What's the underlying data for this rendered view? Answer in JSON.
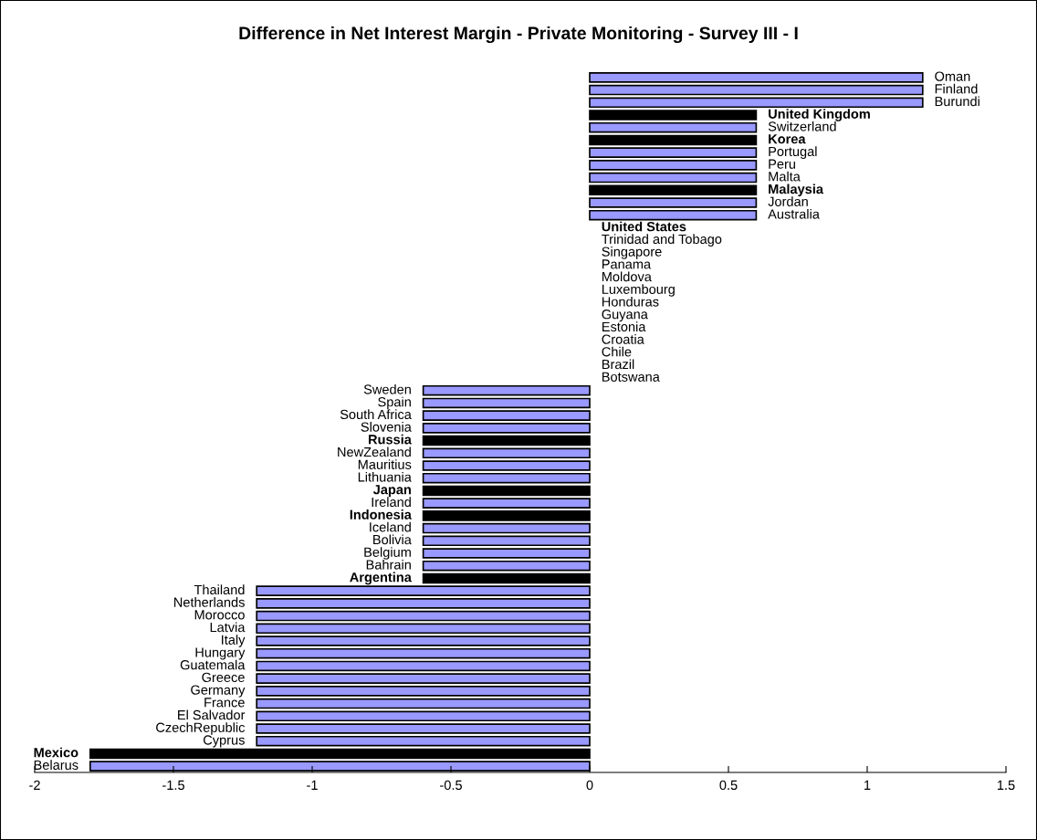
{
  "chart_data": {
    "type": "bar",
    "orientation": "horizontal",
    "title": "Difference in Net Interest Margin - Private Monitoring - Survey III - I",
    "categories": [
      "Oman",
      "Finland",
      "Burundi",
      "United Kingdom",
      "Switzerland",
      "Korea",
      "Portugal",
      "Peru",
      "Malta",
      "Malaysia",
      "Jordan",
      "Australia",
      "United States",
      "Trinidad and Tobago",
      "Singapore",
      "Panama",
      "Moldova",
      "Luxembourg",
      "Honduras",
      "Guyana",
      "Estonia",
      "Croatia",
      "Chile",
      "Brazil",
      "Botswana",
      "Sweden",
      "Spain",
      "South Africa",
      "Slovenia",
      "Russia",
      "NewZealand",
      "Mauritius",
      "Lithuania",
      "Japan",
      "Ireland",
      "Indonesia",
      "Iceland",
      "Bolivia",
      "Belgium",
      "Bahrain",
      "Argentina",
      "Thailand",
      "Netherlands",
      "Morocco",
      "Latvia",
      "Italy",
      "Hungary",
      "Guatemala",
      "Greece",
      "Germany",
      "France",
      "El Salvador",
      "CzechRepublic",
      "Cyprus",
      "Mexico",
      "Belarus"
    ],
    "values": [
      1.2,
      1.2,
      1.2,
      0.6,
      0.6,
      0.6,
      0.6,
      0.6,
      0.6,
      0.6,
      0.6,
      0.6,
      0,
      0,
      0,
      0,
      0,
      0,
      0,
      0,
      0,
      0,
      0,
      0,
      0,
      -0.6,
      -0.6,
      -0.6,
      -0.6,
      -0.6,
      -0.6,
      -0.6,
      -0.6,
      -0.6,
      -0.6,
      -0.6,
      -0.6,
      -0.6,
      -0.6,
      -0.6,
      -0.6,
      -1.2,
      -1.2,
      -1.2,
      -1.2,
      -1.2,
      -1.2,
      -1.2,
      -1.2,
      -1.2,
      -1.2,
      -1.2,
      -1.2,
      -1.2,
      -1.8,
      -1.8
    ],
    "colors": [
      "#9999ff",
      "#9999ff",
      "#9999ff",
      "#000000",
      "#9999ff",
      "#000000",
      "#9999ff",
      "#9999ff",
      "#9999ff",
      "#000000",
      "#9999ff",
      "#9999ff",
      "#000000",
      "#9999ff",
      "#9999ff",
      "#9999ff",
      "#9999ff",
      "#9999ff",
      "#9999ff",
      "#9999ff",
      "#9999ff",
      "#9999ff",
      "#9999ff",
      "#9999ff",
      "#9999ff",
      "#9999ff",
      "#9999ff",
      "#9999ff",
      "#9999ff",
      "#000000",
      "#9999ff",
      "#9999ff",
      "#9999ff",
      "#000000",
      "#9999ff",
      "#000000",
      "#9999ff",
      "#9999ff",
      "#9999ff",
      "#9999ff",
      "#000000",
      "#9999ff",
      "#9999ff",
      "#9999ff",
      "#9999ff",
      "#9999ff",
      "#9999ff",
      "#9999ff",
      "#9999ff",
      "#9999ff",
      "#9999ff",
      "#9999ff",
      "#9999ff",
      "#9999ff",
      "#000000",
      "#9999ff"
    ],
    "xlim": [
      -2,
      1.5
    ],
    "xticks": [
      -2,
      -1.5,
      -1,
      -0.5,
      0,
      0.5,
      1,
      1.5
    ],
    "grid": false,
    "legend": false
  }
}
